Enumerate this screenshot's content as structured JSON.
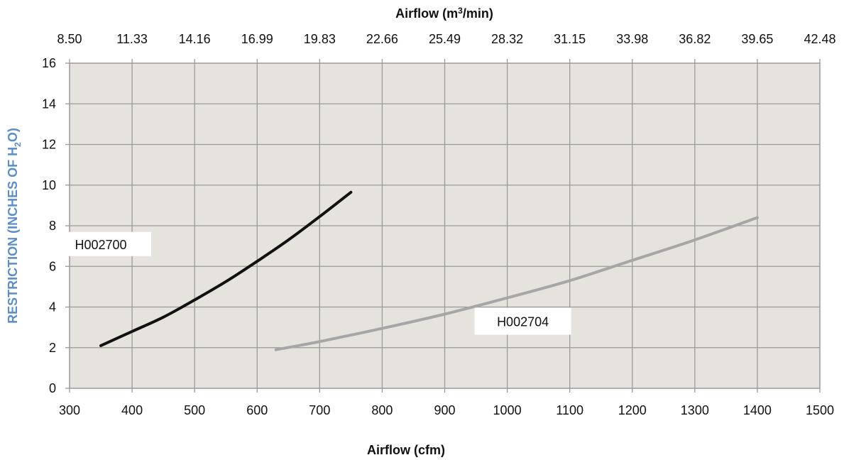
{
  "chart_data": {
    "type": "line",
    "x_axis": {
      "label": "Airflow (cfm)",
      "range": [
        300,
        1500
      ],
      "ticks": [
        "300",
        "400",
        "500",
        "600",
        "700",
        "800",
        "900",
        "1000",
        "1100",
        "1200",
        "1300",
        "1400",
        "1500"
      ]
    },
    "x2_axis": {
      "label_main": "Airflow (m",
      "label_sup": "3",
      "label_end": "/min)",
      "ticks": [
        "8.50",
        "11.33",
        "14.16",
        "16.99",
        "19.83",
        "22.66",
        "25.49",
        "28.32",
        "31.15",
        "33.98",
        "36.82",
        "39.65",
        "42.48"
      ]
    },
    "y_axis": {
      "label_main": "RESTRICTION (INCHES OF H",
      "label_sub": "2",
      "label_end": "O)",
      "range": [
        0,
        16
      ],
      "ticks": [
        "0",
        "2",
        "4",
        "6",
        "8",
        "10",
        "12",
        "14",
        "16"
      ]
    },
    "grid": true,
    "plot_background": "#e6e3df",
    "grid_color": "#9a9a9a",
    "series": [
      {
        "name": "H002700",
        "color": "#111111",
        "x": [
          350,
          400,
          450,
          500,
          550,
          600,
          650,
          700,
          750
        ],
        "y": [
          2.1,
          2.8,
          3.5,
          4.35,
          5.25,
          6.25,
          7.3,
          8.45,
          9.65
        ]
      },
      {
        "name": "H002704",
        "color": "#a6a6a6",
        "x": [
          630,
          700,
          800,
          900,
          1000,
          1100,
          1200,
          1300,
          1400
        ],
        "y": [
          1.9,
          2.3,
          2.95,
          3.65,
          4.45,
          5.3,
          6.3,
          7.3,
          8.4
        ]
      }
    ]
  }
}
